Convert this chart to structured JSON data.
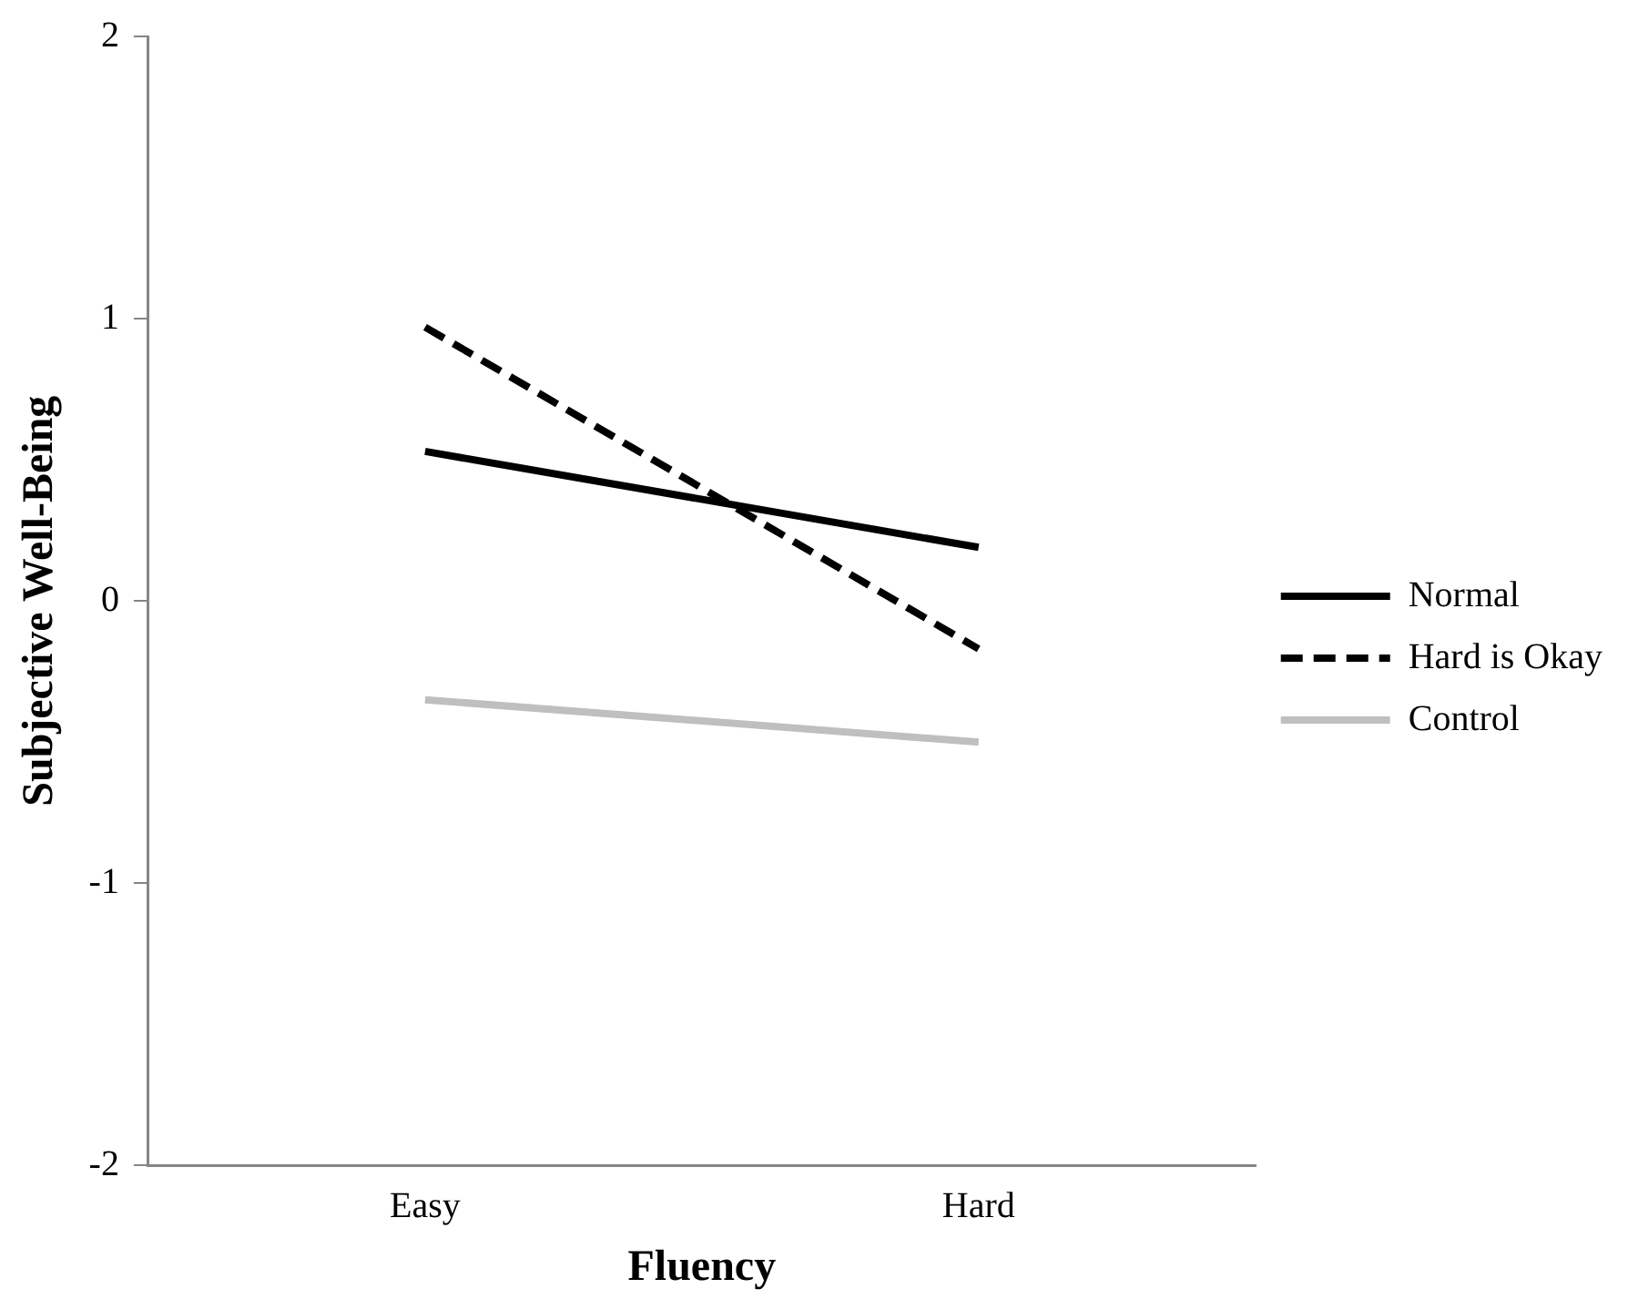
{
  "chart_data": {
    "type": "line",
    "xlabel": "Fluency",
    "ylabel": "Subjective Well-Being",
    "categories": [
      "Easy",
      "Hard"
    ],
    "series": [
      {
        "name": "Normal",
        "color": "#000000",
        "line_style": "solid",
        "values": [
          0.53,
          0.19
        ]
      },
      {
        "name": "Hard is Okay",
        "color": "#000000",
        "line_style": "dashed",
        "values": [
          0.97,
          -0.17
        ]
      },
      {
        "name": "Control",
        "color": "#bfbfbf",
        "line_style": "solid",
        "values": [
          -0.35,
          -0.5
        ]
      }
    ],
    "ylim": [
      -2,
      2
    ],
    "yticks": [
      -2,
      -1,
      0,
      1,
      2
    ],
    "grid": false,
    "legend": "right",
    "marker": "none"
  }
}
